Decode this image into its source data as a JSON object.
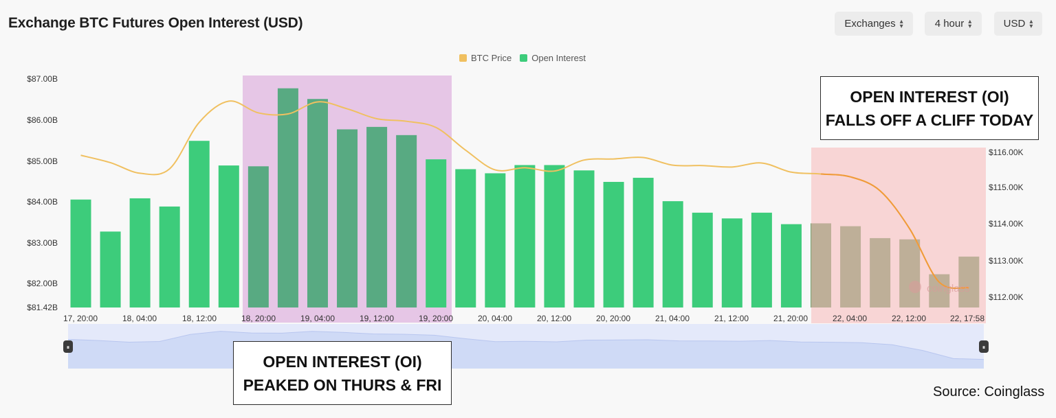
{
  "header": {
    "title": "Exchange BTC Futures Open Interest (USD)",
    "controls": [
      {
        "label": "Exchanges"
      },
      {
        "label": "4 hour"
      },
      {
        "label": "USD"
      }
    ]
  },
  "chart_data": {
    "type": "bar",
    "legend": [
      {
        "name": "BTC Price",
        "color": "#f0c060"
      },
      {
        "name": "Open Interest",
        "color": "#3dcc7b"
      }
    ],
    "x_ticks": [
      "17, 20:00",
      "18, 04:00",
      "18, 12:00",
      "18, 20:00",
      "19, 04:00",
      "19, 12:00",
      "19, 20:00",
      "20, 04:00",
      "20, 12:00",
      "20, 20:00",
      "21, 04:00",
      "21, 12:00",
      "21, 20:00",
      "22, 04:00",
      "22, 12:00",
      "22, 17:58"
    ],
    "left_axis": {
      "ticks": [
        "$87.00B",
        "$86.00B",
        "$85.00B",
        "$84.00B",
        "$83.00B",
        "$82.00B",
        "$81.42B"
      ],
      "ylim": [
        81.42,
        87.1
      ]
    },
    "right_axis": {
      "ticks": [
        "$116.00K",
        "$115.00K",
        "$114.00K",
        "$113.00K",
        "$112.00K"
      ]
    },
    "series": [
      {
        "name": "Open Interest",
        "color": "#3dcc7b",
        "values": [
          84.05,
          83.27,
          84.08,
          83.88,
          85.48,
          84.88,
          84.86,
          86.76,
          86.5,
          85.76,
          85.82,
          85.62,
          85.03,
          84.79,
          84.69,
          84.89,
          84.89,
          84.76,
          84.48,
          84.58,
          84.01,
          83.73,
          83.59,
          83.73,
          83.45,
          83.47,
          83.4,
          83.11,
          83.08,
          82.23,
          82.66
        ]
      },
      {
        "name": "BTC Price",
        "color": "#f0c060",
        "values": [
          115.92,
          115.72,
          115.43,
          115.55,
          116.82,
          117.4,
          117.08,
          117.05,
          117.38,
          117.19,
          116.92,
          116.85,
          116.68,
          116.06,
          115.52,
          115.58,
          115.49,
          115.79,
          115.82,
          115.86,
          115.65,
          115.64,
          115.6,
          115.71,
          115.46,
          115.41,
          115.33,
          114.95,
          113.91,
          112.45,
          112.3
        ],
        "ylim": [
          111.7,
          118.2
        ]
      }
    ],
    "navigator_handles": [
      "⏸",
      "⏸"
    ],
    "watermark": "coinglass"
  },
  "annotations": {
    "left_callout": [
      "OPEN INTEREST (OI)",
      "PEAKED ON THURS & FRI"
    ],
    "right_callout": [
      "OPEN INTEREST (OI)",
      "FALLS OFF A CLIFF TODAY"
    ],
    "source": "Source: Coinglass",
    "peak_shade_color": "#e6c6e6",
    "drop_shade_color": "#f8b8b8"
  }
}
